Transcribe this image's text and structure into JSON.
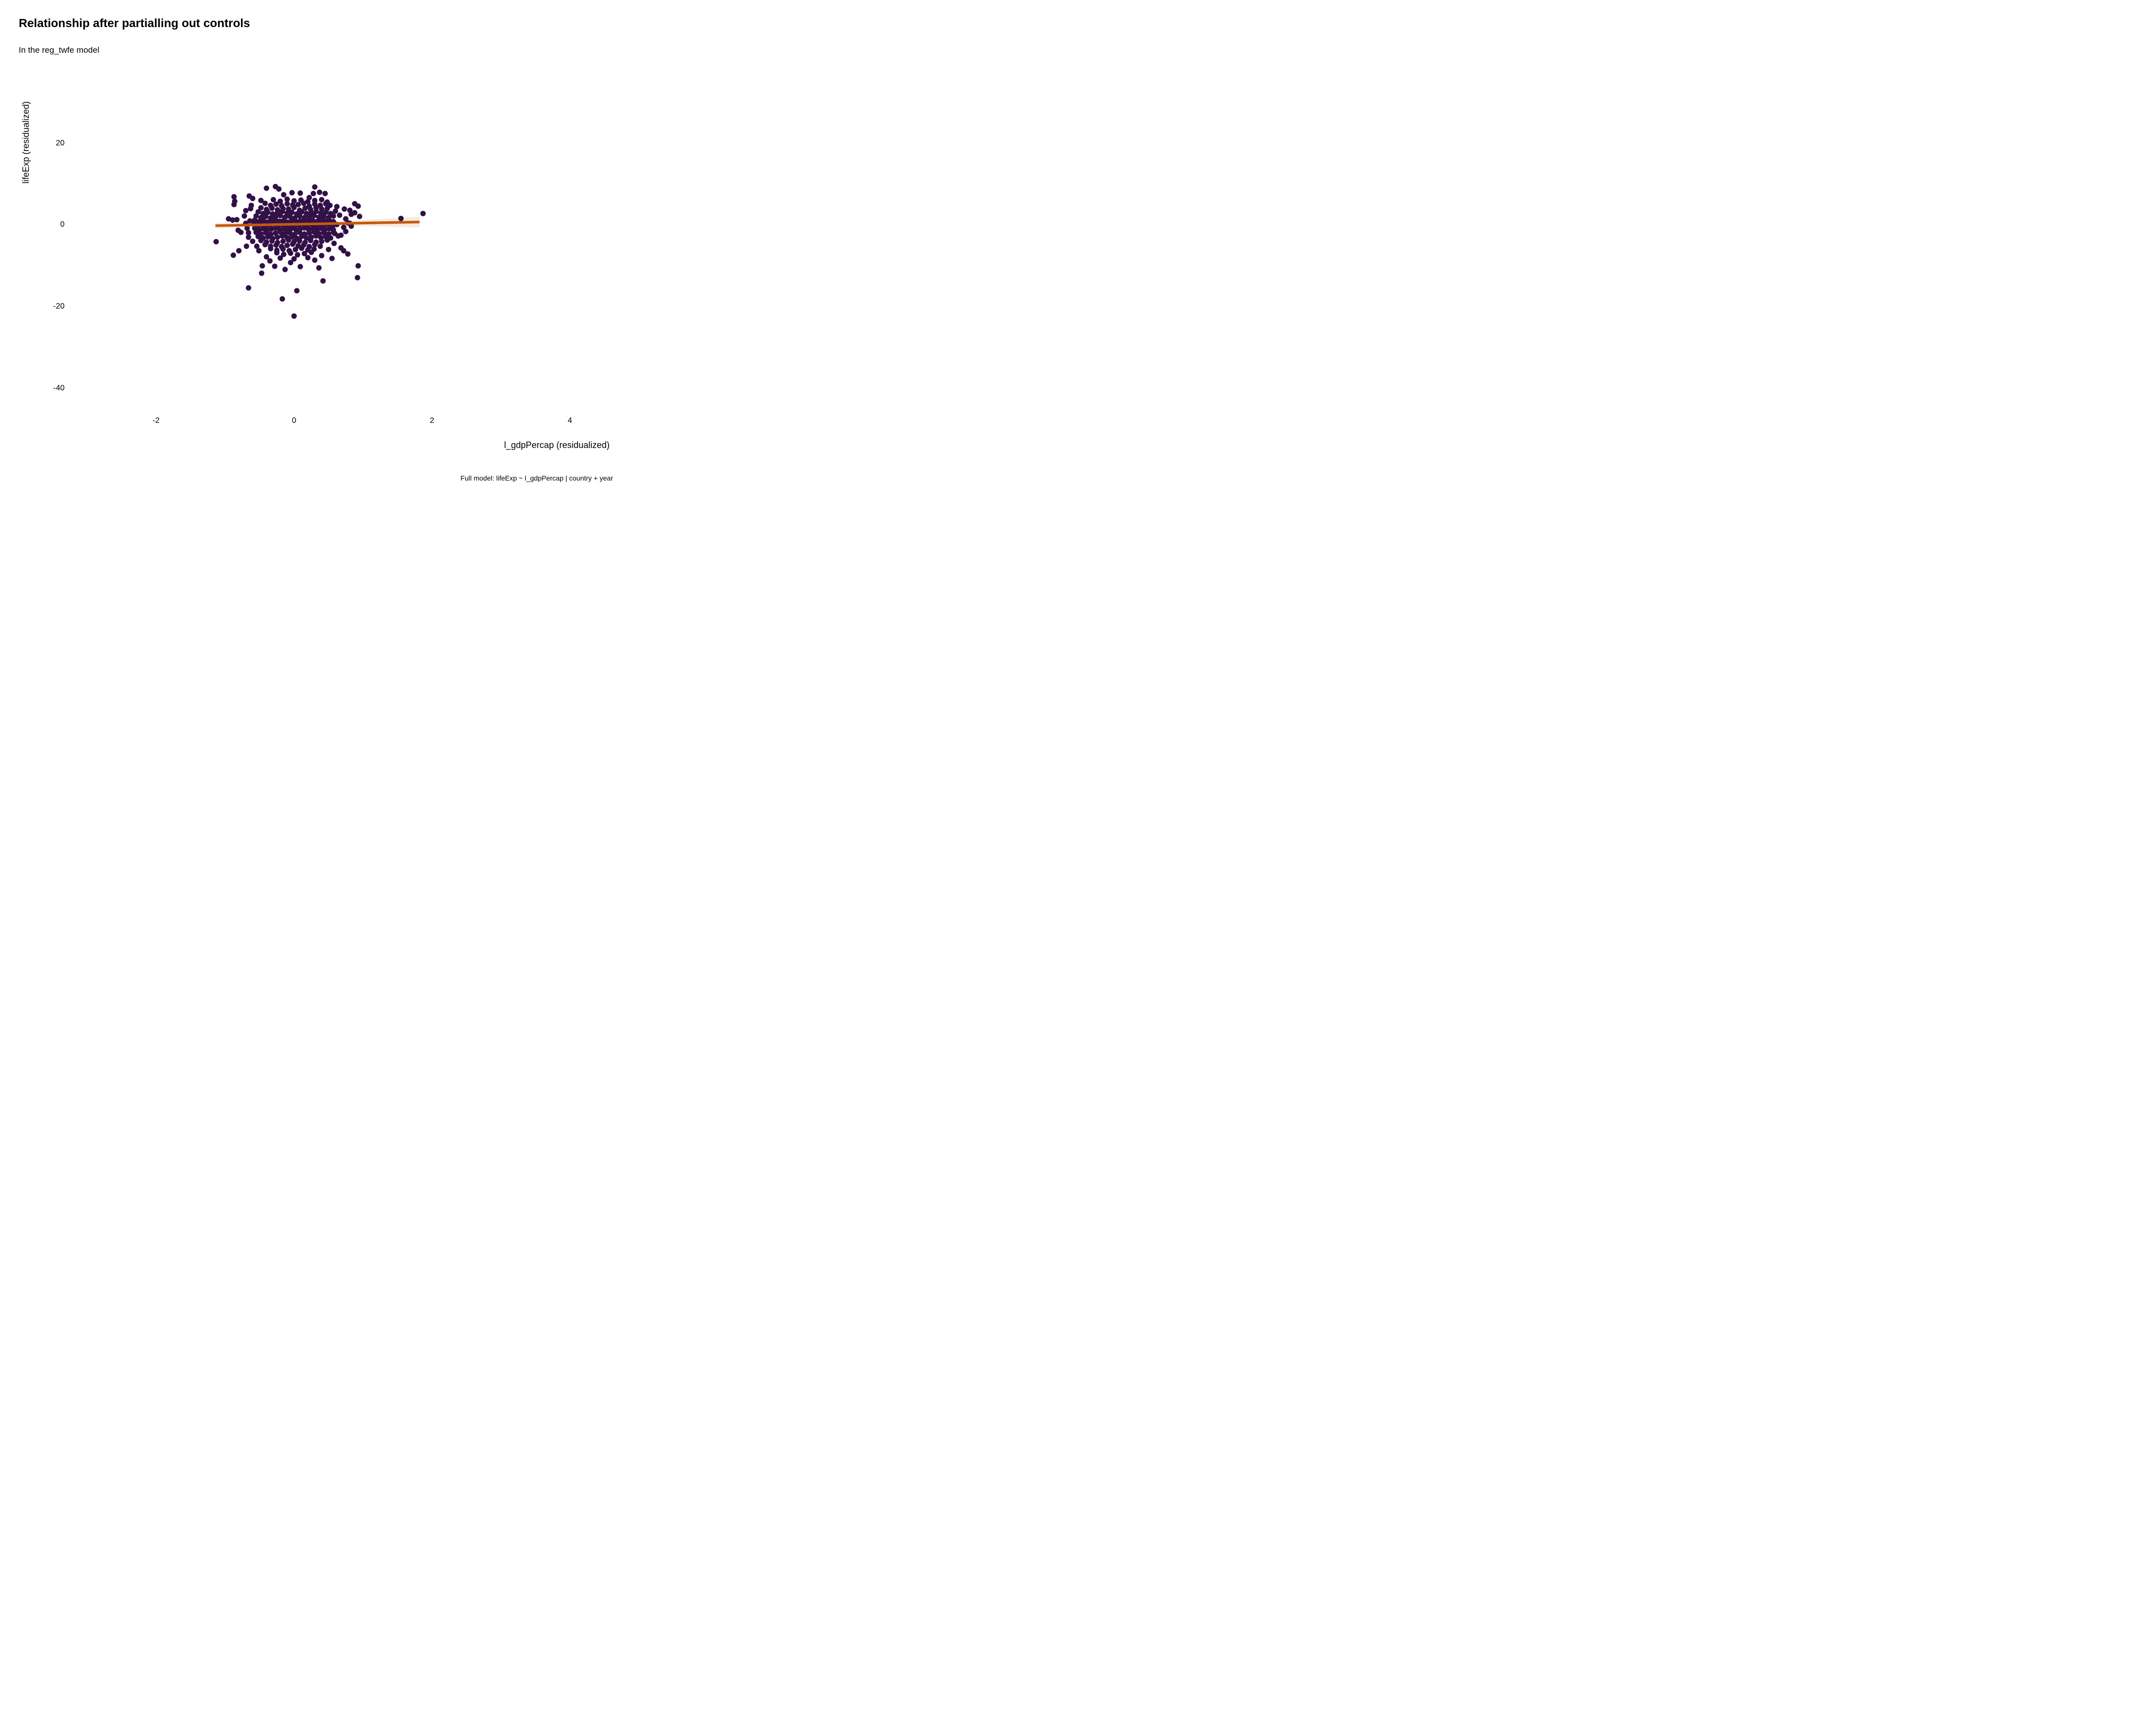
{
  "header": {
    "title": "Relationship after partialling out controls",
    "subtitle": "In the reg_twfe model"
  },
  "chart_data": {
    "type": "scatter",
    "title": "Relationship after partialling out controls",
    "subtitle": "In the reg_twfe model",
    "xlabel": "l_gdpPercap (residualized)",
    "ylabel": "lifeExp (residualized)",
    "caption": "Full model: lifeExp ~ l_gdpPercap | country + year",
    "grid": false,
    "legend": false,
    "background_color": "#ffffff",
    "point_color": "#331047",
    "line_color": "#C55A0D",
    "ribbon_color": "rgba(197,90,13,0.13)",
    "xlim": [
      -3.3,
      4.7
    ],
    "ylim": [
      -46,
      34
    ],
    "x_ticks": [
      {
        "value": -2,
        "label": "-2"
      },
      {
        "value": 0,
        "label": "0"
      },
      {
        "value": 2,
        "label": "2"
      },
      {
        "value": 4,
        "label": "4"
      }
    ],
    "y_ticks": [
      {
        "value": 20,
        "label": "20"
      },
      {
        "value": 0,
        "label": "0"
      },
      {
        "value": -20,
        "label": "-20"
      },
      {
        "value": -40,
        "label": "-40"
      }
    ],
    "regression_line": {
      "x1": -1.14,
      "y1": -0.17,
      "x2": 1.82,
      "y2": 0.72
    },
    "ribbon_polygon": [
      [
        -1.14,
        0.53
      ],
      [
        0.35,
        0.61
      ],
      [
        1.82,
        2.02
      ],
      [
        1.82,
        -0.58
      ],
      [
        0.35,
        -0.05
      ],
      [
        -1.14,
        -0.87
      ]
    ],
    "points": [
      [
        -0.42,
        5.3
      ],
      [
        -0.34,
        4.8
      ],
      [
        -0.26,
        5.1
      ],
      [
        -0.18,
        4.7
      ],
      [
        -0.1,
        5.2
      ],
      [
        -0.02,
        4.9
      ],
      [
        0.06,
        5.0
      ],
      [
        0.14,
        5.3
      ],
      [
        0.22,
        4.6
      ],
      [
        0.3,
        5.1
      ],
      [
        0.38,
        4.8
      ],
      [
        0.46,
        5.2
      ],
      [
        -0.48,
        4.2
      ],
      [
        -0.4,
        3.8
      ],
      [
        -0.32,
        4.1
      ],
      [
        -0.24,
        3.7
      ],
      [
        -0.16,
        4.0
      ],
      [
        -0.08,
        3.9
      ],
      [
        0.0,
        4.3
      ],
      [
        0.08,
        3.6
      ],
      [
        0.16,
        4.1
      ],
      [
        0.24,
        3.8
      ],
      [
        0.32,
        4.2
      ],
      [
        0.4,
        3.9
      ],
      [
        0.48,
        4.0
      ],
      [
        -0.52,
        3.2
      ],
      [
        -0.45,
        2.8
      ],
      [
        -0.38,
        3.1
      ],
      [
        -0.31,
        2.7
      ],
      [
        -0.24,
        3.0
      ],
      [
        -0.17,
        3.3
      ],
      [
        -0.1,
        2.9
      ],
      [
        -0.03,
        3.1
      ],
      [
        0.04,
        2.7
      ],
      [
        0.11,
        3.2
      ],
      [
        0.18,
        2.8
      ],
      [
        0.25,
        3.0
      ],
      [
        0.32,
        3.3
      ],
      [
        0.39,
        2.9
      ],
      [
        0.46,
        3.1
      ],
      [
        0.53,
        2.8
      ],
      [
        -0.55,
        2.2
      ],
      [
        -0.48,
        1.8
      ],
      [
        -0.41,
        2.1
      ],
      [
        -0.34,
        1.7
      ],
      [
        -0.27,
        2.0
      ],
      [
        -0.2,
        2.3
      ],
      [
        -0.13,
        1.9
      ],
      [
        -0.06,
        2.1
      ],
      [
        0.01,
        1.7
      ],
      [
        0.08,
        2.2
      ],
      [
        0.15,
        1.8
      ],
      [
        0.22,
        2.0
      ],
      [
        0.29,
        2.3
      ],
      [
        0.36,
        1.9
      ],
      [
        0.43,
        2.1
      ],
      [
        0.5,
        1.8
      ],
      [
        0.57,
        2.2
      ],
      [
        -0.57,
        1.2
      ],
      [
        -0.51,
        0.8
      ],
      [
        -0.45,
        1.1
      ],
      [
        -0.39,
        0.7
      ],
      [
        -0.33,
        1.0
      ],
      [
        -0.27,
        1.3
      ],
      [
        -0.21,
        0.9
      ],
      [
        -0.15,
        1.1
      ],
      [
        -0.09,
        0.7
      ],
      [
        -0.03,
        1.2
      ],
      [
        0.03,
        0.8
      ],
      [
        0.09,
        1.0
      ],
      [
        0.15,
        1.3
      ],
      [
        0.21,
        0.9
      ],
      [
        0.27,
        1.1
      ],
      [
        0.33,
        0.8
      ],
      [
        0.39,
        1.2
      ],
      [
        0.45,
        0.9
      ],
      [
        0.51,
        1.1
      ],
      [
        0.57,
        0.8
      ],
      [
        -0.58,
        0.2
      ],
      [
        -0.52,
        -0.2
      ],
      [
        -0.46,
        0.1
      ],
      [
        -0.4,
        -0.3
      ],
      [
        -0.34,
        0.0
      ],
      [
        -0.28,
        0.3
      ],
      [
        -0.22,
        -0.1
      ],
      [
        -0.16,
        0.1
      ],
      [
        -0.1,
        -0.3
      ],
      [
        -0.04,
        0.2
      ],
      [
        0.02,
        -0.2
      ],
      [
        0.08,
        0.0
      ],
      [
        0.14,
        0.3
      ],
      [
        0.2,
        -0.1
      ],
      [
        0.26,
        0.1
      ],
      [
        0.32,
        -0.2
      ],
      [
        0.38,
        0.2
      ],
      [
        0.44,
        -0.1
      ],
      [
        0.5,
        0.1
      ],
      [
        0.56,
        -0.3
      ],
      [
        0.62,
        0.1
      ],
      [
        -0.57,
        -0.8
      ],
      [
        -0.51,
        -1.2
      ],
      [
        -0.45,
        -0.9
      ],
      [
        -0.39,
        -1.3
      ],
      [
        -0.33,
        -1.0
      ],
      [
        -0.27,
        -0.7
      ],
      [
        -0.21,
        -1.1
      ],
      [
        -0.15,
        -0.9
      ],
      [
        -0.09,
        -1.3
      ],
      [
        -0.03,
        -0.8
      ],
      [
        0.03,
        -1.2
      ],
      [
        0.09,
        -1.0
      ],
      [
        0.15,
        -0.7
      ],
      [
        0.21,
        -1.1
      ],
      [
        0.27,
        -0.9
      ],
      [
        0.33,
        -1.2
      ],
      [
        0.39,
        -0.8
      ],
      [
        0.45,
        -1.1
      ],
      [
        0.51,
        -0.9
      ],
      [
        0.57,
        -1.2
      ],
      [
        -0.55,
        -1.8
      ],
      [
        -0.48,
        -2.2
      ],
      [
        -0.41,
        -1.9
      ],
      [
        -0.34,
        -2.3
      ],
      [
        -0.27,
        -2.0
      ],
      [
        -0.2,
        -1.7
      ],
      [
        -0.13,
        -2.1
      ],
      [
        -0.06,
        -1.9
      ],
      [
        0.01,
        -2.3
      ],
      [
        0.08,
        -1.8
      ],
      [
        0.15,
        -2.2
      ],
      [
        0.22,
        -2.0
      ],
      [
        0.29,
        -1.7
      ],
      [
        0.36,
        -2.1
      ],
      [
        0.43,
        -1.9
      ],
      [
        0.5,
        -2.2
      ],
      [
        0.57,
        -1.8
      ],
      [
        -0.52,
        -2.8
      ],
      [
        -0.45,
        -3.2
      ],
      [
        -0.38,
        -2.9
      ],
      [
        -0.31,
        -3.3
      ],
      [
        -0.24,
        -3.0
      ],
      [
        -0.17,
        -2.7
      ],
      [
        -0.1,
        -3.1
      ],
      [
        -0.03,
        -2.9
      ],
      [
        0.04,
        -3.3
      ],
      [
        0.11,
        -2.8
      ],
      [
        0.18,
        -3.2
      ],
      [
        0.25,
        -3.0
      ],
      [
        0.32,
        -2.7
      ],
      [
        0.39,
        -3.1
      ],
      [
        0.46,
        -2.9
      ],
      [
        0.53,
        -3.2
      ],
      [
        -0.48,
        -3.8
      ],
      [
        -0.4,
        -4.2
      ],
      [
        -0.32,
        -3.9
      ],
      [
        -0.24,
        -4.3
      ],
      [
        -0.16,
        -4.0
      ],
      [
        -0.08,
        -3.7
      ],
      [
        0.0,
        -4.1
      ],
      [
        0.08,
        -3.9
      ],
      [
        0.16,
        -4.3
      ],
      [
        0.24,
        -3.8
      ],
      [
        0.32,
        -4.2
      ],
      [
        0.4,
        -4.0
      ],
      [
        0.48,
        -3.7
      ],
      [
        -0.42,
        -4.8
      ],
      [
        -0.34,
        -5.2
      ],
      [
        -0.26,
        -4.9
      ],
      [
        -0.18,
        -5.3
      ],
      [
        -0.1,
        -5.0
      ],
      [
        -0.02,
        -4.7
      ],
      [
        0.06,
        -5.1
      ],
      [
        0.14,
        -4.9
      ],
      [
        0.22,
        -5.3
      ],
      [
        0.3,
        -4.8
      ],
      [
        0.38,
        -5.2
      ],
      [
        -0.34,
        -5.8
      ],
      [
        -0.25,
        -6.2
      ],
      [
        -0.16,
        -5.9
      ],
      [
        -0.07,
        -6.3
      ],
      [
        0.02,
        -6.0
      ],
      [
        0.11,
        -5.7
      ],
      [
        0.2,
        -6.1
      ],
      [
        0.29,
        -5.9
      ],
      [
        -0.25,
        -6.8
      ],
      [
        -0.15,
        -7.2
      ],
      [
        -0.05,
        -6.9
      ],
      [
        0.05,
        -7.3
      ],
      [
        0.15,
        -7.0
      ],
      [
        0.25,
        -6.7
      ],
      [
        -0.3,
        6.2
      ],
      [
        -0.2,
        5.8
      ],
      [
        -0.1,
        6.3
      ],
      [
        0.0,
        5.9
      ],
      [
        0.1,
        6.1
      ],
      [
        0.2,
        5.7
      ],
      [
        0.3,
        6.0
      ],
      [
        0.4,
        6.2
      ],
      [
        -0.27,
        9.4
      ],
      [
        0.3,
        9.3
      ],
      [
        -0.22,
        8.8
      ],
      [
        -0.4,
        9.0
      ],
      [
        0.37,
        8.0
      ],
      [
        0.45,
        7.7
      ],
      [
        -0.03,
        7.9
      ],
      [
        0.09,
        7.8
      ],
      [
        -0.65,
        7.1
      ],
      [
        -0.15,
        7.4
      ],
      [
        0.22,
        6.7
      ],
      [
        0.28,
        7.7
      ],
      [
        -0.6,
        6.5
      ],
      [
        -0.48,
        6.0
      ],
      [
        -0.62,
        4.8
      ],
      [
        -0.87,
        6.9
      ],
      [
        -0.86,
        5.8
      ],
      [
        -0.87,
        5.0
      ],
      [
        0.48,
        5.6
      ],
      [
        0.52,
        4.8
      ],
      [
        0.62,
        4.5
      ],
      [
        0.88,
        5.2
      ],
      [
        0.93,
        4.6
      ],
      [
        0.66,
        2.4
      ],
      [
        0.73,
        3.9
      ],
      [
        0.81,
        3.6
      ],
      [
        0.83,
        2.6
      ],
      [
        0.88,
        3.0
      ],
      [
        0.95,
        2.1
      ],
      [
        0.75,
        1.5
      ],
      [
        0.78,
        0.5
      ],
      [
        0.81,
        0.4
      ],
      [
        0.83,
        -0.3
      ],
      [
        0.72,
        -0.6
      ],
      [
        0.75,
        -1.6
      ],
      [
        0.68,
        -2.5
      ],
      [
        0.59,
        -2.1
      ],
      [
        0.64,
        -2.7
      ],
      [
        0.68,
        -5.6
      ],
      [
        0.72,
        -6.3
      ],
      [
        0.78,
        -7.1
      ],
      [
        0.93,
        -10.0
      ],
      [
        0.92,
        -12.9
      ],
      [
        0.42,
        -13.7
      ],
      [
        -0.66,
        -15.4
      ],
      [
        0.04,
        -16.1
      ],
      [
        -0.17,
        -18.1
      ],
      [
        0.0,
        -22.3
      ],
      [
        -0.46,
        -10.0
      ],
      [
        -0.28,
        -10.1
      ],
      [
        -0.13,
        -10.9
      ],
      [
        0.09,
        -10.2
      ],
      [
        0.36,
        -10.5
      ],
      [
        -0.47,
        -11.8
      ],
      [
        -1.13,
        -4.1
      ],
      [
        -0.88,
        -7.4
      ],
      [
        -0.8,
        -6.3
      ],
      [
        -0.69,
        -5.2
      ],
      [
        -0.54,
        -5.2
      ],
      [
        -0.51,
        -6.3
      ],
      [
        -0.95,
        1.5
      ],
      [
        -0.89,
        1.2
      ],
      [
        -0.83,
        1.3
      ],
      [
        -0.81,
        -1.3
      ],
      [
        -0.77,
        -1.8
      ],
      [
        1.55,
        1.6
      ],
      [
        1.87,
        2.8
      ],
      [
        -0.7,
        3.5
      ],
      [
        -0.72,
        2.2
      ],
      [
        -0.7,
        0.4
      ],
      [
        -0.68,
        -0.8
      ],
      [
        -0.66,
        -3.0
      ],
      [
        -0.6,
        -4.0
      ],
      [
        -0.64,
        1.0
      ],
      [
        -0.66,
        -1.9
      ],
      [
        -0.63,
        4.0
      ],
      [
        0.6,
        3.4
      ],
      [
        0.58,
        -4.5
      ],
      [
        0.5,
        -6.0
      ],
      [
        0.4,
        -7.5
      ],
      [
        0.2,
        -8.0
      ],
      [
        0.0,
        -8.3
      ],
      [
        -0.2,
        -8.1
      ],
      [
        -0.4,
        -7.8
      ],
      [
        -0.35,
        -8.8
      ],
      [
        -0.05,
        -9.2
      ],
      [
        0.3,
        -8.6
      ],
      [
        0.55,
        -8.2
      ]
    ]
  }
}
